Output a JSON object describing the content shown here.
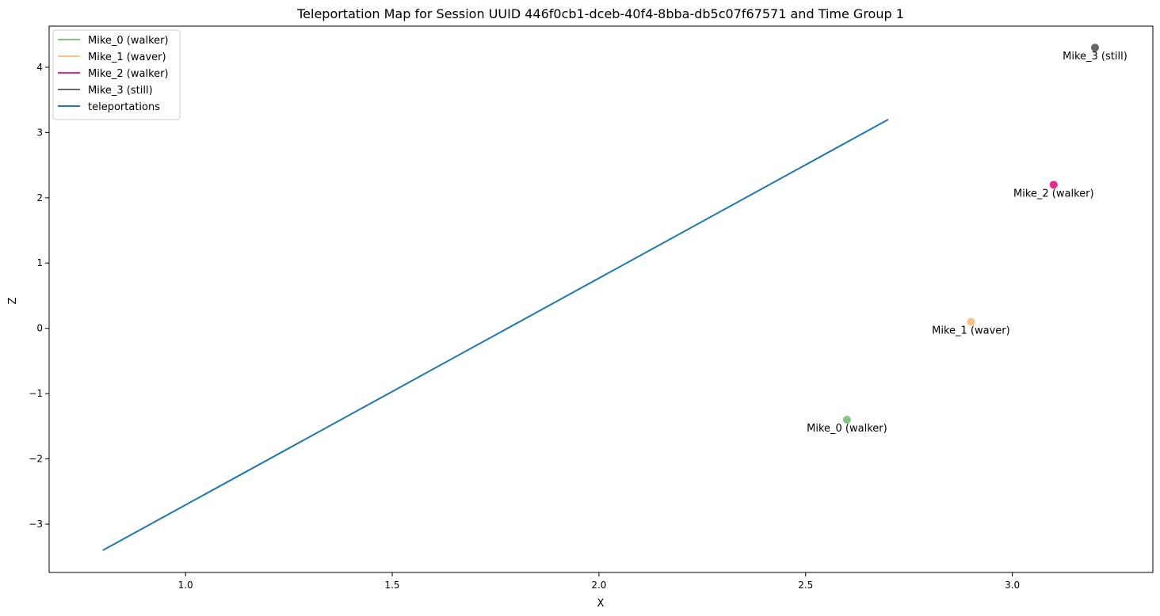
{
  "chart_data": {
    "type": "scatter",
    "title": "Teleportation Map for Session UUID 446f0cb1-dceb-40f4-8bba-db5c07f67571 and Time Group 1",
    "xlabel": "X",
    "ylabel": "Z",
    "xlim": [
      0.67,
      3.34
    ],
    "ylim": [
      -3.74,
      4.63
    ],
    "xticks": [
      {
        "value": 1.0,
        "label": "1.0"
      },
      {
        "value": 1.5,
        "label": "1.5"
      },
      {
        "value": 2.0,
        "label": "2.0"
      },
      {
        "value": 2.5,
        "label": "2.5"
      },
      {
        "value": 3.0,
        "label": "3.0"
      }
    ],
    "yticks": [
      {
        "value": -3,
        "label": "−3"
      },
      {
        "value": -2,
        "label": "−2"
      },
      {
        "value": -1,
        "label": "−1"
      },
      {
        "value": 0,
        "label": "0"
      },
      {
        "value": 1,
        "label": "1"
      },
      {
        "value": 2,
        "label": "2"
      },
      {
        "value": 3,
        "label": "3"
      },
      {
        "value": 4,
        "label": "4"
      }
    ],
    "grid": false,
    "legend_position": "top-left",
    "points": [
      {
        "name": "Mike_0 (walker)",
        "label": "Mike_0 (walker)",
        "x": 2.6,
        "y": -1.4,
        "color": "#7fc97f"
      },
      {
        "name": "Mike_1 (waver)",
        "label": "Mike_1 (waver)",
        "x": 2.9,
        "y": 0.1,
        "color": "#fdc086"
      },
      {
        "name": "Mike_2 (walker)",
        "label": "Mike_2 (walker)",
        "x": 3.1,
        "y": 2.2,
        "color": "#e7298a"
      },
      {
        "name": "Mike_3 (still)",
        "label": "Mike_3 (still)",
        "x": 3.2,
        "y": 4.3,
        "color": "#666666"
      }
    ],
    "series": [
      {
        "name": "teleportations",
        "color": "#1f77b4",
        "x": [
          0.8,
          2.7
        ],
        "y": [
          -3.4,
          3.2
        ]
      }
    ],
    "legend": [
      {
        "label": "Mike_0 (walker)",
        "color": "#7fc97f"
      },
      {
        "label": "Mike_1 (waver)",
        "color": "#fdc086"
      },
      {
        "label": "Mike_2 (walker)",
        "color": "#e7298a"
      },
      {
        "label": "Mike_3 (still)",
        "color": "#666666"
      },
      {
        "label": "teleportations",
        "color": "#1f77b4"
      }
    ]
  }
}
